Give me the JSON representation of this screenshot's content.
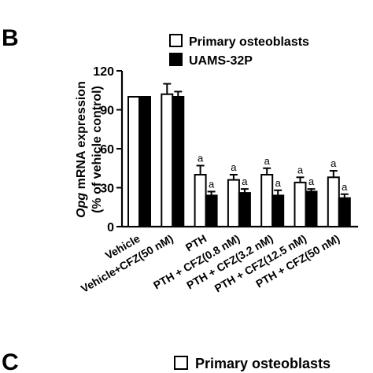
{
  "panel_b": {
    "letter": "B"
  },
  "panel_c": {
    "letter": "C",
    "legend_primary": "Primary osteoblasts"
  },
  "chart_data": {
    "type": "bar",
    "ylabel_gene": "Opg",
    "ylabel_rest": " mRNA expression",
    "ylabel_line2": "(% of vehicle control)",
    "ylim": [
      0,
      120
    ],
    "yticks": [
      0,
      30,
      60,
      90,
      120
    ],
    "legend_position": "top-right",
    "categories": [
      "Vehicle",
      "Vehicle+CFZ(50 nM)",
      "PTH",
      "PTH + CFZ(0.8 nM)",
      "PTH + CFZ(3.2 nM)",
      "PTH + CFZ(12.5 nM)",
      "PTH + CFZ(50 nM)"
    ],
    "series": [
      {
        "name": "Primary osteoblasts",
        "fill": "#ffffff",
        "values": [
          100,
          102,
          40,
          36,
          40,
          34,
          38
        ],
        "errors": [
          0,
          8,
          7,
          4,
          5,
          4,
          5
        ],
        "annotations": [
          "",
          "",
          "a",
          "a",
          "a",
          "a",
          "a"
        ]
      },
      {
        "name": "UAMS-32P",
        "fill": "#000000",
        "values": [
          100,
          100,
          24,
          26,
          24,
          27,
          22
        ],
        "errors": [
          0,
          4,
          3,
          3,
          4,
          2,
          3
        ],
        "annotations": [
          "",
          "",
          "a",
          "a",
          "a",
          "a",
          "a"
        ]
      }
    ]
  }
}
